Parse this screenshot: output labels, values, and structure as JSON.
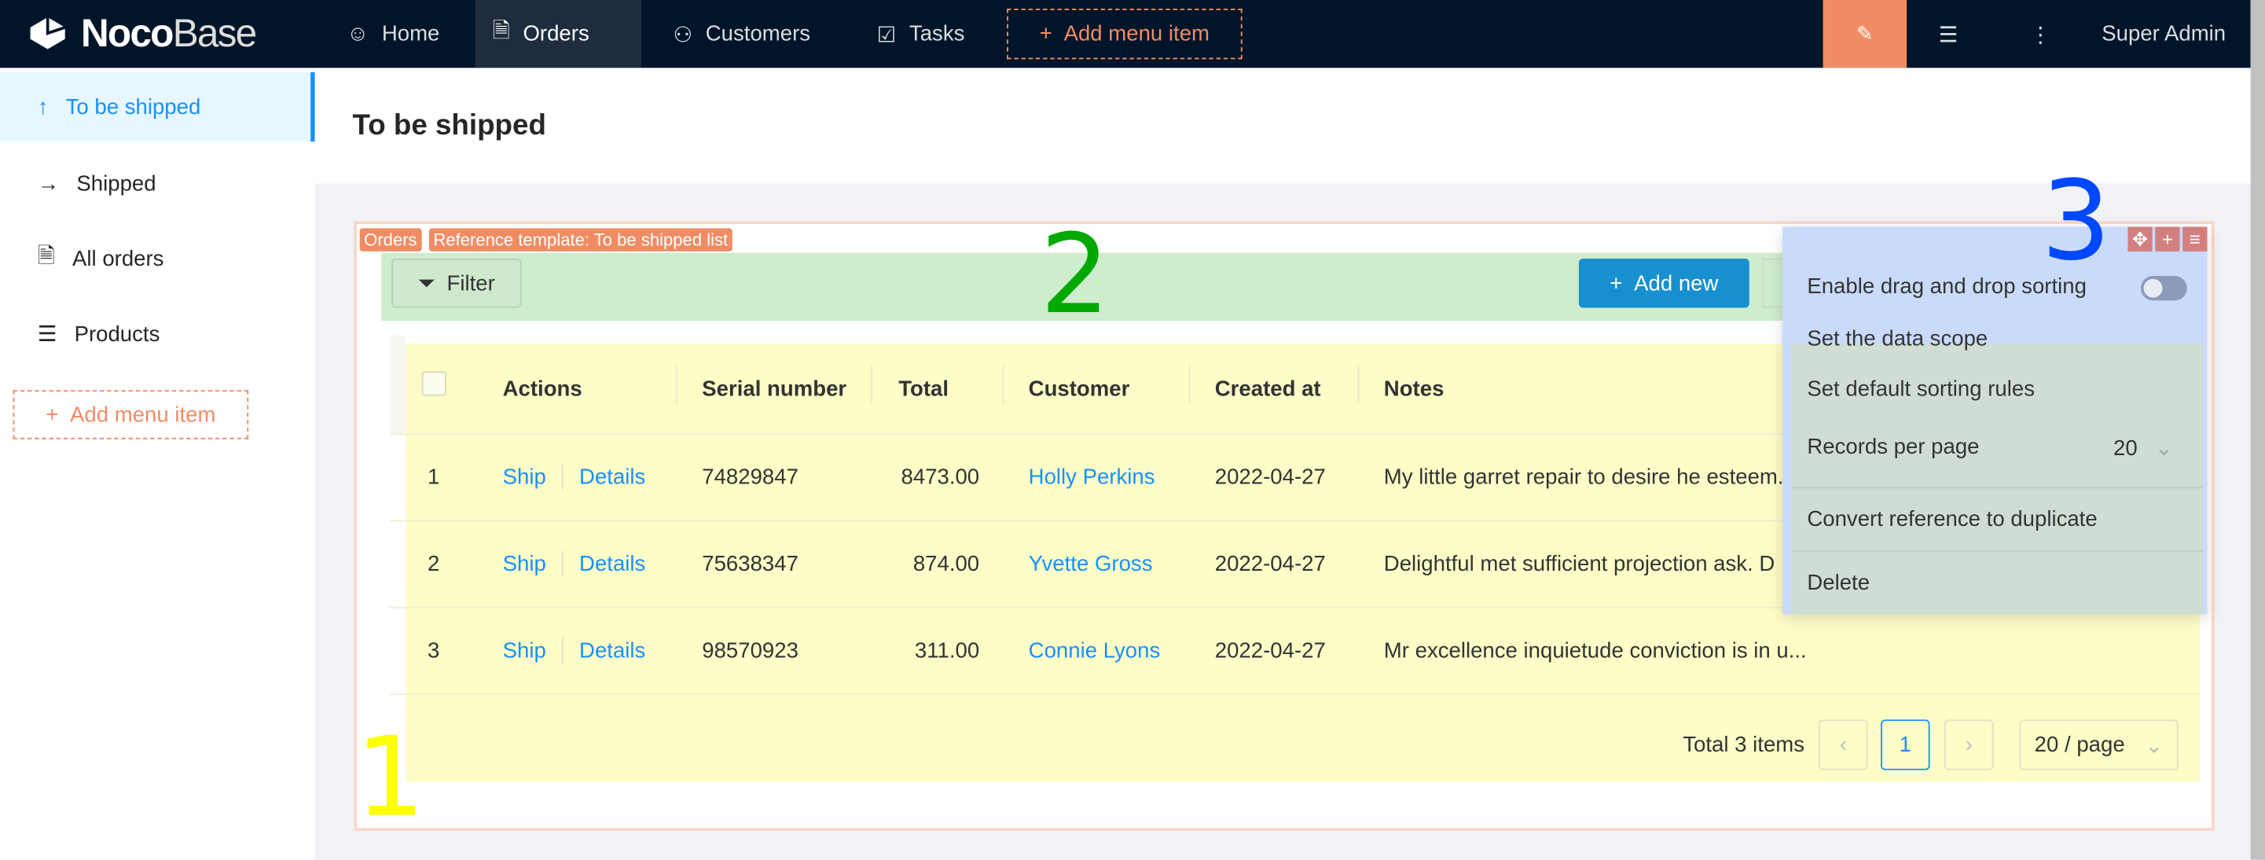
{
  "app": {
    "logo_bold": "Noco",
    "logo_thin": "Base"
  },
  "topnav": {
    "items": [
      {
        "label": "Home",
        "icon": "smile-icon"
      },
      {
        "label": "Orders",
        "icon": "file-check-icon"
      },
      {
        "label": "Customers",
        "icon": "users-icon"
      },
      {
        "label": "Tasks",
        "icon": "check-square-icon"
      }
    ],
    "active": "Orders",
    "add_menu_item": "Add menu item",
    "user": "Super Admin"
  },
  "sidebar": {
    "items": [
      {
        "label": "To be shipped",
        "icon": "arrow-up-icon"
      },
      {
        "label": "Shipped",
        "icon": "arrow-right-icon"
      },
      {
        "label": "All orders",
        "icon": "file-check-icon"
      },
      {
        "label": "Products",
        "icon": "list-icon"
      }
    ],
    "add_menu_item": "Add menu item"
  },
  "page": {
    "title": "To be shipped"
  },
  "block": {
    "tags": [
      "Orders",
      "Reference template: To be shipped list"
    ],
    "filter_label": "Filter",
    "add_new_label": "Add new"
  },
  "table": {
    "columns": [
      "Actions",
      "Serial number",
      "Total",
      "Customer",
      "Created at",
      "Notes"
    ],
    "rows": [
      {
        "index": "1",
        "action_ship": "Ship",
        "action_details": "Details",
        "serial": "74829847",
        "total": "8473.00",
        "customer": "Holly Perkins",
        "created": "2022-04-27",
        "notes": "My little garret repair to desire he esteem."
      },
      {
        "index": "2",
        "action_ship": "Ship",
        "action_details": "Details",
        "serial": "75638347",
        "total": "874.00",
        "customer": "Yvette Gross",
        "created": "2022-04-27",
        "notes": "Delightful met sufficient projection ask. D"
      },
      {
        "index": "3",
        "action_ship": "Ship",
        "action_details": "Details",
        "serial": "98570923",
        "total": "311.00",
        "customer": "Connie Lyons",
        "created": "2022-04-27",
        "notes": "Mr excellence inquietude conviction is in u..."
      }
    ],
    "pagination": {
      "total": "Total 3 items",
      "current": "1",
      "page_size": "20 / page"
    }
  },
  "annotations": {
    "one": "1",
    "two": "2",
    "three": "3",
    "colors": {
      "one": "#ffff00",
      "two": "#00a800",
      "three": "#0048ff"
    }
  },
  "settings_menu": {
    "enable_drag": "Enable drag and drop sorting",
    "drag_enabled": false,
    "data_scope": "Set the data scope",
    "sorting_rules": "Set default sorting rules",
    "records_per_page": "Records per page",
    "records_value": "20",
    "convert": "Convert reference to duplicate",
    "delete": "Delete"
  },
  "colors": {
    "header": "#001529",
    "accent": "#1890ff",
    "designer": "#f08c64"
  }
}
